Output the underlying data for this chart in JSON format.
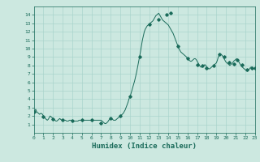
{
  "title": "",
  "xlabel": "Humidex (Indice chaleur)",
  "xlim": [
    0,
    23
  ],
  "ylim": [
    0,
    15
  ],
  "xticks": [
    0,
    1,
    2,
    3,
    4,
    5,
    6,
    7,
    8,
    9,
    10,
    11,
    12,
    13,
    14,
    15,
    16,
    17,
    18,
    19,
    20,
    21,
    22,
    23
  ],
  "yticks": [
    1,
    2,
    3,
    4,
    5,
    6,
    7,
    8,
    9,
    10,
    11,
    12,
    13,
    14
  ],
  "background_color": "#cce8e0",
  "grid_color": "#aad4cc",
  "line_color": "#1a6b5a",
  "marker_color": "#1a6b5a",
  "x": [
    0.0,
    0.1,
    0.2,
    0.3,
    0.4,
    0.5,
    0.6,
    0.7,
    0.8,
    0.9,
    1.0,
    1.1,
    1.2,
    1.3,
    1.4,
    1.5,
    1.6,
    1.7,
    1.8,
    1.9,
    2.0,
    2.1,
    2.2,
    2.3,
    2.4,
    2.5,
    2.6,
    2.7,
    2.8,
    2.9,
    3.0,
    3.1,
    3.2,
    3.3,
    3.4,
    3.5,
    3.6,
    3.7,
    3.8,
    3.9,
    4.0,
    4.1,
    4.2,
    4.3,
    4.4,
    4.5,
    4.6,
    4.7,
    4.8,
    4.9,
    5.0,
    5.1,
    5.2,
    5.3,
    5.4,
    5.5,
    5.6,
    5.7,
    5.8,
    5.9,
    6.0,
    6.1,
    6.2,
    6.3,
    6.4,
    6.5,
    6.6,
    6.7,
    6.8,
    6.9,
    7.0,
    7.1,
    7.2,
    7.3,
    7.4,
    7.5,
    7.6,
    7.7,
    7.8,
    7.9,
    8.0,
    8.1,
    8.2,
    8.3,
    8.4,
    8.5,
    8.6,
    8.7,
    8.8,
    8.9,
    9.0,
    9.1,
    9.2,
    9.3,
    9.4,
    9.5,
    9.6,
    9.7,
    9.8,
    9.9,
    10.0,
    10.1,
    10.2,
    10.3,
    10.4,
    10.5,
    10.6,
    10.7,
    10.8,
    10.9,
    11.0,
    11.1,
    11.2,
    11.3,
    11.4,
    11.5,
    11.6,
    11.7,
    11.8,
    11.9,
    12.0,
    12.1,
    12.2,
    12.3,
    12.4,
    12.5,
    12.6,
    12.7,
    12.8,
    12.9,
    13.0,
    13.1,
    13.2,
    13.3,
    13.4,
    13.5,
    13.6,
    13.7,
    13.8,
    13.9,
    14.0,
    14.1,
    14.2,
    14.3,
    14.4,
    14.5,
    14.6,
    14.7,
    14.8,
    14.9,
    15.0,
    15.1,
    15.2,
    15.3,
    15.4,
    15.5,
    15.6,
    15.7,
    15.8,
    15.9,
    16.0,
    16.1,
    16.2,
    16.3,
    16.4,
    16.5,
    16.6,
    16.7,
    16.8,
    16.9,
    17.0,
    17.1,
    17.2,
    17.3,
    17.4,
    17.5,
    17.6,
    17.7,
    17.8,
    17.9,
    18.0,
    18.1,
    18.2,
    18.3,
    18.4,
    18.5,
    18.6,
    18.7,
    18.8,
    18.9,
    19.0,
    19.1,
    19.2,
    19.3,
    19.4,
    19.5,
    19.6,
    19.7,
    19.8,
    19.9,
    20.0,
    20.1,
    20.2,
    20.3,
    20.4,
    20.5,
    20.6,
    20.7,
    20.8,
    20.9,
    21.0,
    21.1,
    21.2,
    21.3,
    21.4,
    21.5,
    21.6,
    21.7,
    21.8,
    21.9,
    22.0,
    22.1,
    22.2,
    22.3,
    22.4,
    22.5,
    22.6,
    22.7,
    22.8,
    22.9,
    23.0
  ],
  "y": [
    2.5,
    2.6,
    2.8,
    2.5,
    2.4,
    2.3,
    2.2,
    2.3,
    2.3,
    2.2,
    2.0,
    1.9,
    1.7,
    1.6,
    1.5,
    1.6,
    1.8,
    2.0,
    1.9,
    1.8,
    1.7,
    1.6,
    1.5,
    1.4,
    1.4,
    1.5,
    1.6,
    1.7,
    1.6,
    1.5,
    1.5,
    1.5,
    1.5,
    1.5,
    1.4,
    1.4,
    1.4,
    1.5,
    1.5,
    1.5,
    1.5,
    1.4,
    1.4,
    1.4,
    1.4,
    1.4,
    1.4,
    1.5,
    1.5,
    1.5,
    1.5,
    1.5,
    1.5,
    1.5,
    1.5,
    1.5,
    1.5,
    1.5,
    1.5,
    1.5,
    1.5,
    1.5,
    1.5,
    1.5,
    1.5,
    1.5,
    1.5,
    1.5,
    1.5,
    1.5,
    1.5,
    1.4,
    1.3,
    1.2,
    1.1,
    1.1,
    1.2,
    1.3,
    1.5,
    1.6,
    1.7,
    1.7,
    1.6,
    1.5,
    1.5,
    1.5,
    1.6,
    1.7,
    1.8,
    1.9,
    2.0,
    2.1,
    2.2,
    2.3,
    2.5,
    2.7,
    3.0,
    3.3,
    3.6,
    4.0,
    4.3,
    4.6,
    5.0,
    5.4,
    5.8,
    6.2,
    6.7,
    7.2,
    7.8,
    8.4,
    9.0,
    9.6,
    10.3,
    11.0,
    11.5,
    12.0,
    12.3,
    12.5,
    12.7,
    12.8,
    12.9,
    13.0,
    13.1,
    13.2,
    13.3,
    13.5,
    13.7,
    13.9,
    14.0,
    14.1,
    14.2,
    14.0,
    13.8,
    13.6,
    13.4,
    13.3,
    13.2,
    13.1,
    13.0,
    12.9,
    12.8,
    12.6,
    12.4,
    12.2,
    12.0,
    11.8,
    11.5,
    11.2,
    10.9,
    10.6,
    10.3,
    10.0,
    9.8,
    9.6,
    9.5,
    9.4,
    9.3,
    9.2,
    9.1,
    9.0,
    8.8,
    8.7,
    8.6,
    8.5,
    8.5,
    8.6,
    8.7,
    8.8,
    8.8,
    8.7,
    8.5,
    8.3,
    8.1,
    7.9,
    7.8,
    7.8,
    7.9,
    8.0,
    8.1,
    8.0,
    7.8,
    7.7,
    7.6,
    7.6,
    7.7,
    7.8,
    7.9,
    8.0,
    8.1,
    8.2,
    8.3,
    8.6,
    9.0,
    9.3,
    9.4,
    9.3,
    9.2,
    9.0,
    8.8,
    8.6,
    8.4,
    8.3,
    8.2,
    8.1,
    8.0,
    8.1,
    8.2,
    8.3,
    8.5,
    8.6,
    8.7,
    8.8,
    8.7,
    8.5,
    8.3,
    8.1,
    7.9,
    7.8,
    7.7,
    7.6,
    7.5,
    7.4,
    7.3,
    7.4,
    7.5,
    7.7,
    7.8,
    7.8,
    7.7,
    7.6,
    7.7
  ],
  "marker_x": [
    0,
    1,
    2,
    3,
    4,
    5,
    6,
    7,
    8,
    9,
    10,
    11,
    12,
    13,
    13.8,
    14.2,
    15,
    16,
    17,
    17.5,
    18,
    18.7,
    19.3,
    19.8,
    20.3,
    20.8,
    21.2,
    21.7,
    22.2,
    22.7,
    23.0
  ],
  "marker_y": [
    2.5,
    1.9,
    1.6,
    1.5,
    1.4,
    1.5,
    1.5,
    1.2,
    1.7,
    2.0,
    4.3,
    9.0,
    12.9,
    13.5,
    14.0,
    14.2,
    10.3,
    8.8,
    8.1,
    8.0,
    7.7,
    8.0,
    9.3,
    9.0,
    8.4,
    8.2,
    8.7,
    8.1,
    7.5,
    7.7,
    7.7
  ]
}
